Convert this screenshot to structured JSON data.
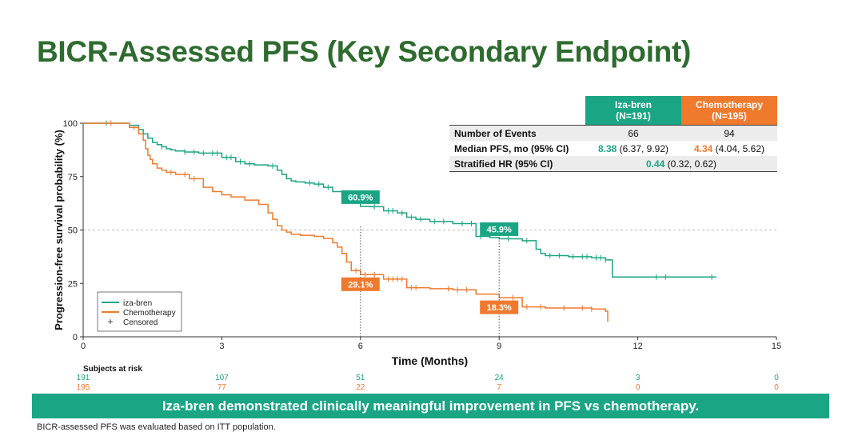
{
  "title": "BICR-Assessed PFS (Key Secondary Endpoint)",
  "colors": {
    "iza": "#1aa584",
    "chemo": "#ef7a2d",
    "title": "#2e6b2e"
  },
  "table": {
    "headers": [
      {
        "name": "Iza-bren",
        "n": "(N=191)"
      },
      {
        "name": "Chemotherapy",
        "n": "(N=195)"
      }
    ],
    "rows": {
      "events": {
        "label": "Number of Events",
        "iza": "66",
        "chemo": "94"
      },
      "median": {
        "label": "Median PFS, mo (95% CI)",
        "iza_value": "8.38",
        "iza_ci": "(6.37, 9.92)",
        "chemo_value": "4.34",
        "chemo_ci": "(4.04, 5.62)"
      },
      "hr": {
        "label": "Stratified HR (95% CI)",
        "value": "0.44",
        "ci": "(0.32, 0.62)"
      }
    }
  },
  "chart_data": {
    "type": "line",
    "xlabel": "Time (Months)",
    "ylabel": "Progression-free survival probability (%)",
    "xlim": [
      0,
      15
    ],
    "ylim": [
      0,
      100
    ],
    "xticks": [
      0,
      3,
      6,
      9,
      12,
      15
    ],
    "yticks": [
      0,
      25,
      50,
      75,
      100
    ],
    "reference_line_y": 50,
    "series": [
      {
        "name": "iza-bren",
        "color": "#1aa584",
        "x": [
          0,
          1,
          1.2,
          1.3,
          1.4,
          1.5,
          1.6,
          1.7,
          1.8,
          1.9,
          2.0,
          2.2,
          2.5,
          3.0,
          3.3,
          3.5,
          3.7,
          4.0,
          4.2,
          4.3,
          4.4,
          4.5,
          4.6,
          4.8,
          5.0,
          5.2,
          5.4,
          5.6,
          5.8,
          6.0,
          6.2,
          6.5,
          6.8,
          7.0,
          7.2,
          7.5,
          8.0,
          8.5,
          8.8,
          9.0,
          9.5,
          9.8,
          9.9,
          10.0,
          10.5,
          11.0,
          11.3,
          11.45,
          13.7
        ],
        "y": [
          100,
          99,
          97,
          95,
          93,
          91,
          90,
          89,
          88,
          87.5,
          87,
          86.5,
          86,
          84,
          82,
          81,
          80.5,
          80,
          78,
          76,
          74,
          73,
          72.5,
          72,
          71.5,
          70,
          68,
          67,
          65,
          61,
          60.9,
          59,
          58,
          56,
          55,
          54,
          53,
          47,
          46.5,
          45.9,
          45,
          41,
          39,
          38,
          37.5,
          37,
          36,
          28,
          28
        ],
        "annotations": [
          {
            "x": 6,
            "y": 60.9,
            "label": "60.9%"
          },
          {
            "x": 9,
            "y": 45.9,
            "label": "45.9%"
          }
        ]
      },
      {
        "name": "Chemotherapy",
        "color": "#ef7a2d",
        "x": [
          0,
          1,
          1.2,
          1.3,
          1.35,
          1.4,
          1.45,
          1.5,
          1.6,
          1.7,
          1.8,
          2.0,
          2.3,
          2.6,
          2.8,
          3.0,
          3.2,
          3.5,
          3.8,
          4.0,
          4.1,
          4.2,
          4.3,
          4.4,
          4.5,
          4.7,
          5.0,
          5.2,
          5.4,
          5.5,
          5.6,
          5.7,
          5.8,
          6.0,
          6.5,
          7.0,
          7.5,
          8.0,
          8.5,
          9.0,
          9.5,
          10.0,
          11.0,
          11.3,
          11.35
        ],
        "y": [
          100,
          98,
          95,
          92,
          88,
          85,
          83,
          81,
          79,
          78,
          77,
          76,
          74,
          70,
          68,
          66.5,
          65.5,
          64,
          62,
          58,
          55,
          52,
          50,
          49,
          48,
          47.5,
          47,
          46,
          44,
          42,
          39,
          35,
          31,
          29.1,
          27,
          23,
          22.5,
          22,
          20,
          18.3,
          14,
          13.5,
          13,
          12,
          7
        ],
        "annotations": [
          {
            "x": 6,
            "y": 29.1,
            "label": "29.1%"
          },
          {
            "x": 9,
            "y": 18.3,
            "label": "18.3%"
          }
        ]
      }
    ],
    "legend": {
      "position": "bottom-left",
      "entries": [
        {
          "label": "iza-bren",
          "kind": "line",
          "color": "#1aa584"
        },
        {
          "label": "Chemotherapy",
          "kind": "line",
          "color": "#ef7a2d"
        },
        {
          "label": "Censored",
          "kind": "plus",
          "color": "#333333"
        }
      ]
    },
    "risk_table": {
      "title": "Subjects at risk",
      "times": [
        0,
        3,
        6,
        9,
        12,
        15
      ],
      "iza": [
        "191",
        "107",
        "51",
        "24",
        "3",
        "0"
      ],
      "chemo": [
        "195",
        "77",
        "22",
        "7",
        "0",
        "0"
      ]
    },
    "censored": {
      "iza": [
        0.5,
        1.7,
        2.2,
        2.4,
        2.6,
        2.8,
        2.9,
        3.1,
        3.2,
        3.4,
        3.6,
        4.1,
        4.9,
        5.1,
        5.3,
        5.9,
        6.3,
        6.6,
        6.7,
        6.9,
        7.1,
        7.3,
        7.6,
        7.8,
        8.2,
        8.4,
        8.6,
        9.2,
        9.6,
        10.1,
        10.3,
        10.6,
        10.8,
        10.9,
        11.1,
        11.2,
        11.3,
        12.4,
        12.6,
        13.6
      ],
      "chemo": [
        0.6,
        1.1,
        1.9,
        2.2,
        2.4,
        5.9,
        6.1,
        6.3,
        6.6,
        6.7,
        6.8,
        6.9,
        7.1,
        7.2,
        7.9,
        8.1,
        8.3,
        9.3,
        9.6,
        9.9,
        10.4,
        10.8,
        11.0
      ]
    }
  },
  "banner": "Iza-bren demonstrated clinically meaningful improvement in PFS vs chemotherapy.",
  "footnote": "BICR-assessed PFS was evaluated based on ITT population."
}
